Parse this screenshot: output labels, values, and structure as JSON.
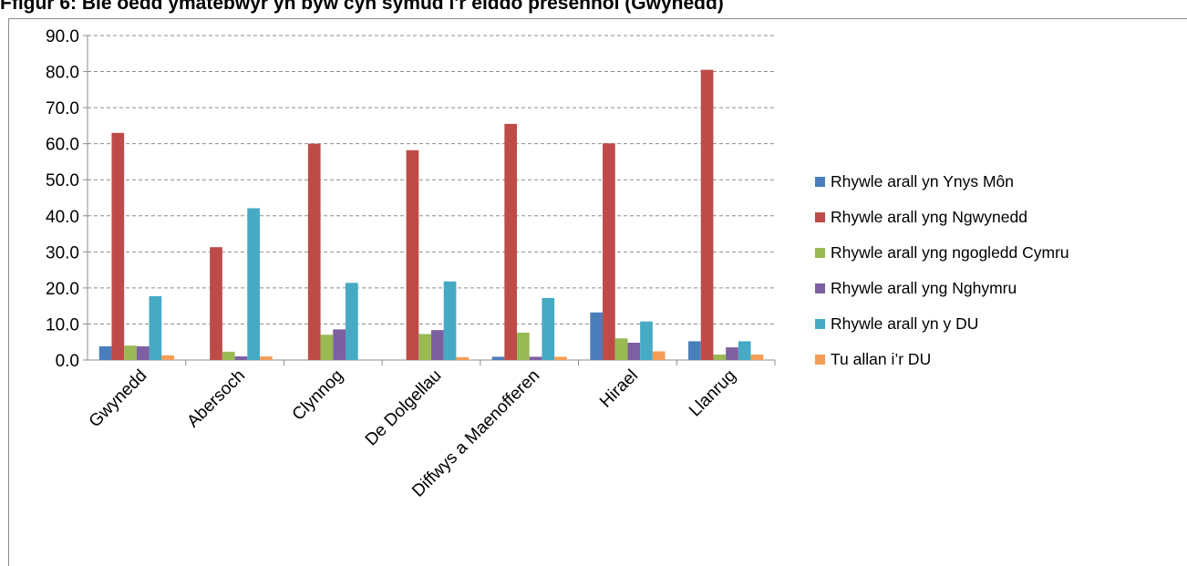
{
  "chart_data": {
    "type": "bar",
    "title": "Ffigur 6: Ble oedd ymatebwyr yn byw cyn symud i'r eiddo presennol (Gwynedd)",
    "categories": [
      "Gwynedd",
      "Abersoch",
      "Clynnog",
      "De Dolgellau",
      "Diffwys a Maenofferen",
      "Hirael",
      "Llanrug"
    ],
    "ylim": [
      0,
      90
    ],
    "yticks": [
      "0.0",
      "10.0",
      "20.0",
      "30.0",
      "40.0",
      "50.0",
      "60.0",
      "70.0",
      "80.0",
      "90.0"
    ],
    "grid": true,
    "legend_position": "right",
    "series": [
      {
        "name": "Rhywle arall yn Ynys Môn",
        "color": "#4a7ebb",
        "values": [
          3.8,
          0,
          0,
          0,
          0.9,
          13.2,
          5.2
        ]
      },
      {
        "name": "Rhywle arall yng Ngwynedd",
        "color": "#be4b48",
        "values": [
          63.0,
          31.3,
          60.0,
          58.2,
          65.5,
          60.1,
          80.5
        ]
      },
      {
        "name": "Rhywle arall yng ngogledd Cymru",
        "color": "#98b954",
        "values": [
          4.0,
          2.3,
          7.0,
          7.2,
          7.6,
          6.0,
          1.5
        ]
      },
      {
        "name": "Rhywle arall yng Nghymru",
        "color": "#7d60a0",
        "values": [
          3.8,
          1.0,
          8.5,
          8.3,
          0.9,
          4.8,
          3.5
        ]
      },
      {
        "name": "Rhywle arall yn y DU",
        "color": "#46aac5",
        "values": [
          17.7,
          42.1,
          21.4,
          21.8,
          17.2,
          10.7,
          5.2
        ]
      },
      {
        "name": "Tu allan i’r DU",
        "color": "#f59d56",
        "values": [
          1.3,
          1.0,
          0,
          0.8,
          0.9,
          2.4,
          1.5
        ]
      }
    ]
  }
}
